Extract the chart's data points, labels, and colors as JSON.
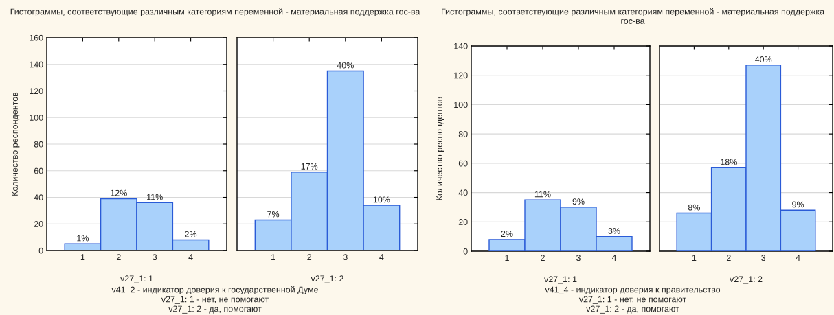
{
  "chart_data": [
    {
      "type": "bar",
      "title": "Гистограммы, соответствующие различным категориям переменной - материальная поддержка гос-ва",
      "ylabel": "Количество респондентов",
      "xlabel": "v27_1: 1",
      "categories": [
        "1",
        "2",
        "3",
        "4"
      ],
      "values": [
        5,
        39,
        36,
        8
      ],
      "color": "#a9d1fb",
      "ylim": [
        0,
        160
      ],
      "yticks": [
        0,
        20,
        40,
        60,
        80,
        100,
        120,
        140,
        160
      ],
      "grid": "y",
      "annotations": [
        {
          "text": "1%",
          "x": "1",
          "y": 5
        },
        {
          "text": "12%",
          "x": "2",
          "y": 39
        },
        {
          "text": "11%",
          "x": "3",
          "y": 36
        },
        {
          "text": "2%",
          "x": "4",
          "y": 8
        },
        "v41_2 - индикатор доверия к государственной Думе",
        "v27_1: 1 - нет, не помогают",
        "v27_1: 2 - да, помогают"
      ]
    },
    {
      "type": "bar",
      "xlabel": "v27_1: 2",
      "categories": [
        "1",
        "2",
        "3",
        "4"
      ],
      "values": [
        23,
        59,
        135,
        34
      ],
      "color": "#a9d1fb",
      "ylim": [
        0,
        160
      ],
      "yticks": [
        0,
        20,
        40,
        60,
        80,
        100,
        120,
        140,
        160
      ],
      "grid": "y",
      "tick_labels": "x",
      "annotations": [
        {
          "text": "7%",
          "x": "1",
          "y": 23
        },
        {
          "text": "17%",
          "x": "2",
          "y": 59
        },
        {
          "text": "40%",
          "x": "3",
          "y": 135
        },
        {
          "text": "10%",
          "x": "4",
          "y": 34
        }
      ]
    },
    {
      "type": "bar",
      "title": "Гистограммы, соответствующие различным категориям переменной - материальная поддержка гос-ва",
      "ylabel": "Количество респондентов",
      "xlabel": "v27_1: 1",
      "categories": [
        "1",
        "2",
        "3",
        "4"
      ],
      "values": [
        8,
        35,
        30,
        10
      ],
      "color": "#a9d1fb",
      "ylim": [
        0,
        140
      ],
      "yticks": [
        0,
        20,
        40,
        60,
        80,
        100,
        120,
        140
      ],
      "grid": "y",
      "annotations": [
        {
          "text": "2%",
          "x": "1",
          "y": 8
        },
        {
          "text": "11%",
          "x": "2",
          "y": 35
        },
        {
          "text": "9%",
          "x": "3",
          "y": 30
        },
        {
          "text": "3%",
          "x": "4",
          "y": 10
        },
        "v41_4 - индикатор доверия к правительство",
        "v27_1: 1 - нет, не помогают",
        "v27_1: 2 - да, помогают"
      ]
    },
    {
      "type": "bar",
      "xlabel": "v27_1: 2",
      "categories": [
        "1",
        "2",
        "3",
        "4"
      ],
      "values": [
        26,
        57,
        127,
        28
      ],
      "color": "#a9d1fb",
      "ylim": [
        0,
        140
      ],
      "yticks": [
        0,
        20,
        40,
        60,
        80,
        100,
        120,
        140
      ],
      "grid": "y",
      "tick_labels": "x",
      "annotations": [
        {
          "text": "8%",
          "x": "1",
          "y": 26
        },
        {
          "text": "18%",
          "x": "2",
          "y": 57
        },
        {
          "text": "40%",
          "x": "3",
          "y": 127
        },
        {
          "text": "9%",
          "x": "4",
          "y": 28
        }
      ]
    }
  ]
}
